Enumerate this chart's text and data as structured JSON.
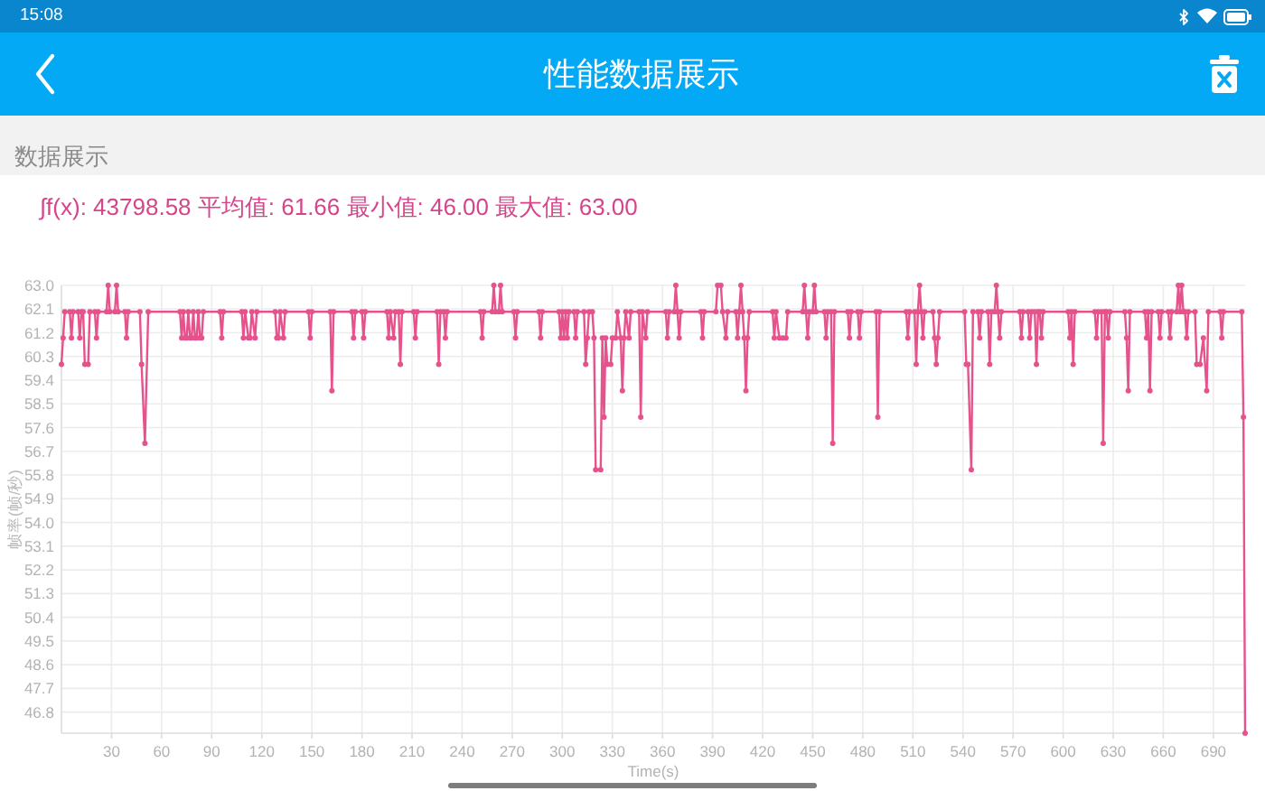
{
  "chart_data": {
    "type": "line",
    "title": "性能数据展示",
    "subtitle": "数据展示",
    "xlabel": "Time(s)",
    "ylabel": "帧率(帧/秒)",
    "annotations": [
      "15:08",
      "∫f(x): 43798.58 平均值: 61.66 最小值: 46.00 最大值: 63.00"
    ],
    "x": [
      0,
      1,
      2,
      5,
      6,
      7,
      10,
      11,
      12,
      13,
      14,
      16,
      17,
      20,
      21,
      22,
      27,
      28,
      29,
      32,
      33,
      34,
      38,
      39,
      40,
      47,
      48,
      50,
      52,
      71,
      72,
      73,
      74,
      75,
      76,
      77,
      78,
      79,
      80,
      81,
      82,
      83,
      84,
      85,
      95,
      96,
      97,
      108,
      109,
      110,
      112,
      113,
      114,
      116,
      117,
      128,
      129,
      130,
      131,
      133,
      134,
      148,
      149,
      150,
      161,
      162,
      163,
      174,
      175,
      176,
      180,
      181,
      182,
      195,
      196,
      197,
      199,
      200,
      202,
      203,
      204,
      211,
      212,
      213,
      225,
      226,
      227,
      229,
      230,
      231,
      251,
      252,
      253,
      258,
      259,
      260,
      262,
      263,
      264,
      271,
      272,
      273,
      286,
      287,
      288,
      298,
      299,
      300,
      301,
      302,
      303,
      304,
      307,
      308,
      309,
      313,
      314,
      315,
      316,
      318,
      319,
      320,
      323,
      324,
      325,
      326,
      327,
      329,
      330,
      332,
      333,
      335,
      336,
      337,
      338,
      340,
      341,
      346,
      347,
      348,
      350,
      351,
      362,
      363,
      364,
      367,
      368,
      369,
      370,
      371,
      383,
      384,
      385,
      392,
      393,
      395,
      396,
      398,
      399,
      404,
      405,
      406,
      407,
      408,
      409,
      410,
      411,
      412,
      426,
      427,
      428,
      430,
      432,
      434,
      435,
      444,
      445,
      446,
      447,
      448,
      450,
      451,
      452,
      457,
      458,
      459,
      461,
      462,
      463,
      471,
      472,
      473,
      477,
      478,
      479,
      488,
      489,
      490,
      506,
      507,
      508,
      511,
      512,
      513,
      514,
      515,
      516,
      517,
      522,
      523,
      524,
      525,
      526,
      541,
      542,
      543,
      545,
      546,
      549,
      550,
      551,
      555,
      556,
      557,
      559,
      560,
      561,
      562,
      563,
      574,
      575,
      576,
      579,
      580,
      581,
      583,
      584,
      585,
      586,
      587,
      588,
      603,
      604,
      605,
      606,
      607,
      619,
      620,
      621,
      623,
      624,
      625,
      626,
      627,
      628,
      637,
      638,
      639,
      640,
      649,
      650,
      651,
      652,
      653,
      657,
      658,
      659,
      663,
      664,
      665,
      668,
      669,
      670,
      671,
      672,
      673,
      674,
      675,
      679,
      680,
      682,
      684,
      686,
      687,
      694,
      695,
      696,
      707,
      708,
      709
    ],
    "values": [
      60,
      61,
      62,
      62,
      61,
      62,
      62,
      61,
      62,
      62,
      60,
      60,
      62,
      62,
      61,
      62,
      62,
      63,
      62,
      62,
      63,
      62,
      62,
      61,
      62,
      62,
      60,
      57,
      62,
      62,
      61,
      62,
      61,
      61,
      62,
      61,
      61,
      62,
      61,
      61,
      62,
      61,
      61,
      62,
      62,
      61,
      62,
      62,
      61,
      62,
      61,
      61,
      62,
      61,
      62,
      62,
      61,
      61,
      62,
      61,
      62,
      62,
      61,
      62,
      62,
      59,
      62,
      62,
      61,
      62,
      62,
      61,
      62,
      62,
      61,
      62,
      61,
      62,
      62,
      60,
      62,
      62,
      61,
      62,
      62,
      60,
      62,
      62,
      61,
      62,
      62,
      61,
      62,
      62,
      63,
      62,
      62,
      63,
      62,
      62,
      61,
      62,
      62,
      61,
      62,
      62,
      61,
      62,
      61,
      62,
      61,
      62,
      62,
      61,
      62,
      62,
      60,
      61,
      62,
      62,
      61,
      56,
      56,
      61,
      58,
      61,
      60,
      60,
      61,
      61,
      62,
      61,
      59,
      61,
      62,
      61,
      62,
      62,
      58,
      62,
      61,
      62,
      62,
      61,
      62,
      62,
      63,
      62,
      61,
      62,
      62,
      61,
      62,
      62,
      63,
      63,
      62,
      61,
      62,
      62,
      61,
      62,
      63,
      62,
      61,
      59,
      61,
      62,
      62,
      61,
      62,
      61,
      61,
      61,
      62,
      62,
      63,
      62,
      61,
      62,
      62,
      63,
      62,
      62,
      61,
      62,
      62,
      57,
      62,
      62,
      61,
      62,
      62,
      61,
      62,
      62,
      58,
      62,
      62,
      61,
      62,
      62,
      60,
      62,
      63,
      62,
      61,
      62,
      62,
      61,
      60,
      61,
      62,
      62,
      60,
      60,
      56,
      62,
      62,
      61,
      62,
      62,
      60,
      62,
      62,
      63,
      62,
      61,
      62,
      62,
      61,
      62,
      62,
      61,
      62,
      62,
      60,
      62,
      62,
      61,
      62,
      62,
      61,
      62,
      60,
      62,
      62,
      61,
      62,
      62,
      57,
      62,
      62,
      61,
      62,
      62,
      61,
      59,
      62,
      62,
      61,
      62,
      59,
      62,
      62,
      61,
      62,
      62,
      61,
      62,
      62,
      63,
      62,
      63,
      62,
      62,
      61,
      62,
      62,
      60,
      60,
      61,
      59,
      62,
      62,
      61,
      62,
      62,
      58,
      46
    ],
    "color": "#e5528c",
    "marker": "circle",
    "grid": true,
    "xlim": [
      0,
      709
    ],
    "ylim": [
      46,
      63
    ],
    "xticks": [
      30,
      60,
      90,
      120,
      150,
      180,
      210,
      240,
      270,
      300,
      330,
      360,
      390,
      420,
      450,
      480,
      510,
      540,
      570,
      600,
      630,
      660,
      690
    ],
    "yticks": [
      46.8,
      47.7,
      48.6,
      49.5,
      50.4,
      51.3,
      52.2,
      53.1,
      {
        "value": 54,
        "label": "54.0"
      },
      54.9,
      55.8,
      56.7,
      57.6,
      58.5,
      59.4,
      60.3,
      61.2,
      62.1,
      {
        "value": 63,
        "label": "63.0"
      }
    ]
  }
}
